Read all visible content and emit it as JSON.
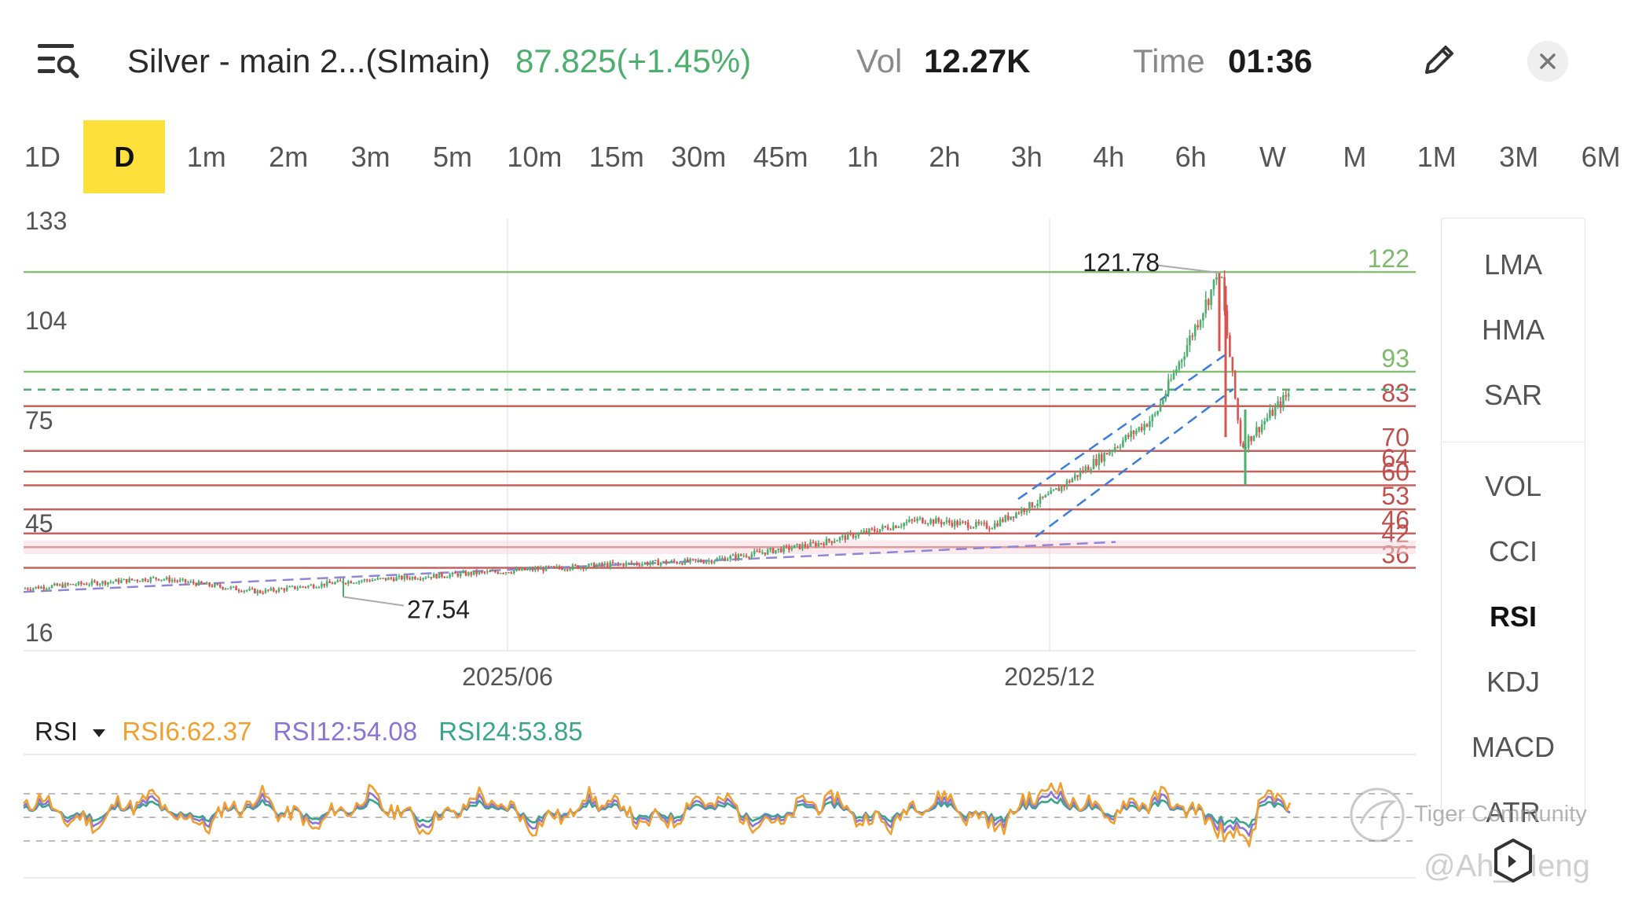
{
  "header": {
    "title": "Silver - main 2...(SImain)",
    "price": "87.825(+1.45%)",
    "vol_label": "Vol",
    "vol_value": "12.27K",
    "time_label": "Time",
    "time_value": "01:36"
  },
  "icons": {
    "menu": "menu-search-icon",
    "edit": "pencil-icon",
    "close": "close-icon",
    "indicator_dropdown": "triangle-down-icon",
    "watermark": "tiger-logo-icon",
    "hex": "hexagon-icon"
  },
  "timeframes": [
    "1D",
    "D",
    "1m",
    "2m",
    "3m",
    "5m",
    "10m",
    "15m",
    "30m",
    "45m",
    "1h",
    "2h",
    "3h",
    "4h",
    "6h",
    "W",
    "M",
    "1M",
    "3M",
    "6M"
  ],
  "active_timeframe": "D",
  "indicators": {
    "overlay": [
      "LMA",
      "HMA",
      "SAR"
    ],
    "sub": [
      "VOL",
      "CCI",
      "RSI",
      "KDJ",
      "MACD",
      "ATR"
    ],
    "active": "RSI"
  },
  "rsi": {
    "name": "RSI",
    "rsi6": "RSI6:62.37",
    "rsi12": "RSI12:54.08",
    "rsi24": "RSI24:53.85"
  },
  "watermark": {
    "brand": "Tiger Community",
    "user": "@Ah_Meng"
  },
  "colors": {
    "up": "#4caf6e",
    "down": "#d9534f",
    "accent_tab": "#fde03c",
    "rsi6": "#f0a030",
    "rsi12": "#8b74d8",
    "rsi24": "#3aa58a",
    "level_green": "#7cb96a",
    "level_red": "#c0504d"
  },
  "chart_data": [
    {
      "type": "candlestick",
      "instrument": "Silver - main 2...(SImain)",
      "y_tick_labels": [
        "133",
        "104",
        "75",
        "45",
        "16"
      ],
      "x_tick_labels": [
        "2025/06",
        "2025/12"
      ],
      "annotations": [
        {
          "label": "121.78",
          "value": 121.78,
          "kind": "high"
        },
        {
          "label": "27.54",
          "value": 27.54,
          "kind": "low"
        }
      ],
      "levels": [
        {
          "label": "122",
          "value": 122,
          "color": "green"
        },
        {
          "label": "93",
          "value": 93,
          "color": "green"
        },
        {
          "label": "83",
          "value": 83,
          "color": "red"
        },
        {
          "label": "70",
          "value": 70,
          "color": "red"
        },
        {
          "label": "64",
          "value": 64,
          "color": "red"
        },
        {
          "label": "60",
          "value": 60,
          "color": "red"
        },
        {
          "label": "53",
          "value": 53,
          "color": "red"
        },
        {
          "label": "46",
          "value": 46,
          "color": "red"
        },
        {
          "label": "42",
          "value": 42,
          "color": "red"
        },
        {
          "label": "36",
          "value": 36,
          "color": "red"
        }
      ],
      "current_price_line": 87.825,
      "approx_close_path": [
        {
          "x": "2025/01",
          "y": 30
        },
        {
          "x": "2025/03",
          "y": 33
        },
        {
          "x": "2025/04",
          "y": 29
        },
        {
          "x": "2025/05",
          "y": 32
        },
        {
          "x": "2025/06",
          "y": 35
        },
        {
          "x": "2025/07",
          "y": 37
        },
        {
          "x": "2025/08",
          "y": 38
        },
        {
          "x": "2025/09",
          "y": 43
        },
        {
          "x": "2025/10",
          "y": 50
        },
        {
          "x": "2025/11",
          "y": 48
        },
        {
          "x": "2025/12",
          "y": 57
        },
        {
          "x": "2026/01",
          "y": 80
        },
        {
          "x": "2026/01b",
          "y": 121.78
        },
        {
          "x": "2026/02",
          "y": 71
        },
        {
          "x": "2026/02b",
          "y": 87.8
        }
      ]
    },
    {
      "type": "line",
      "title": "RSI",
      "series": [
        {
          "name": "RSI6",
          "last": 62.37
        },
        {
          "name": "RSI12",
          "last": 54.08
        },
        {
          "name": "RSI24",
          "last": 53.85
        }
      ],
      "guide_lines": [
        70,
        50,
        30
      ]
    }
  ]
}
